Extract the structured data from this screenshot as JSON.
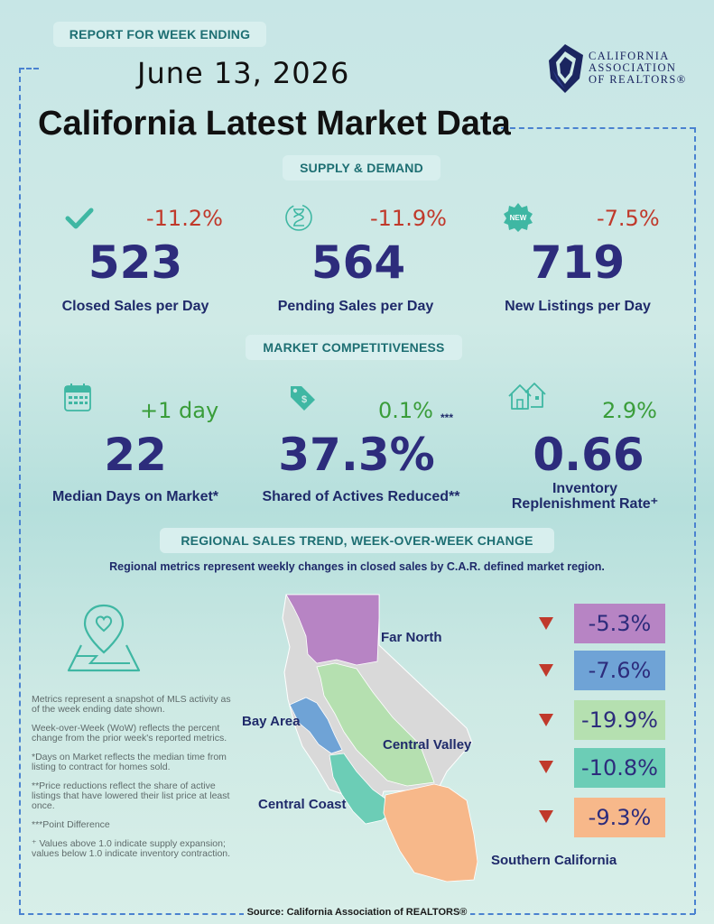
{
  "header": {
    "report_label": "REPORT FOR WEEK ENDING",
    "date": "June 13, 2026",
    "title": "California Latest Market Data",
    "logo_lines": [
      "CALIFORNIA",
      "ASSOCIATION",
      "OF REALTORS®"
    ]
  },
  "supply": {
    "section_label": "SUPPLY & DEMAND",
    "items": [
      {
        "icon": "checkmark-icon",
        "change": "-11.2%",
        "value": "523",
        "label": "Closed Sales per Day"
      },
      {
        "icon": "hourglass-icon",
        "change": "-11.9%",
        "value": "564",
        "label": "Pending Sales per Day"
      },
      {
        "icon": "new-badge-icon",
        "change": "-7.5%",
        "value": "719",
        "label": "New Listings per Day"
      }
    ]
  },
  "competitiveness": {
    "section_label": "MARKET COMPETITIVENESS",
    "items": [
      {
        "icon": "calendar-icon",
        "change": "+1 day",
        "value": "22",
        "label": "Median Days on Market*"
      },
      {
        "icon": "price-tag-icon",
        "change": "0.1%",
        "note": "***",
        "value": "37.3%",
        "label": "Shared of Actives Reduced**"
      },
      {
        "icon": "houses-icon",
        "change": "2.9%",
        "value": "0.66",
        "label_line1": "Inventory",
        "label_line2": "Replenishment Rate⁺"
      }
    ]
  },
  "regional": {
    "section_label": "REGIONAL SALES TREND, WEEK-OVER-WEEK CHANGE",
    "subtitle": "Regional metrics represent weekly changes in closed sales by C.A.R. defined market region.",
    "regions": [
      {
        "name": "Far North",
        "change": "-5.3%",
        "color": "#b784c4"
      },
      {
        "name": "Bay Area",
        "change": "-7.6%",
        "color": "#6fa3d6"
      },
      {
        "name": "Central Valley",
        "change": "-19.9%",
        "color": "#b5e0b0"
      },
      {
        "name": "Central Coast",
        "change": "-10.8%",
        "color": "#6ccdb6"
      },
      {
        "name": "Southern California",
        "change": "-9.3%",
        "color": "#f7b88a"
      }
    ]
  },
  "notes": [
    "Metrics represent a snapshot of MLS activity as of the week ending date shown.",
    "Week-over-Week (WoW) reflects the percent change from the prior week's reported metrics.",
    "*Days on Market reflects the median time from listing to contract for homes sold.",
    "**Price reductions reflect the share of active listings that have lowered their list price at least once.",
    "***Point Difference",
    "⁺ Values above 1.0 indicate supply expansion; values below 1.0 indicate inventory contraction."
  ],
  "source": "Source: California Association of REALTORS®"
}
